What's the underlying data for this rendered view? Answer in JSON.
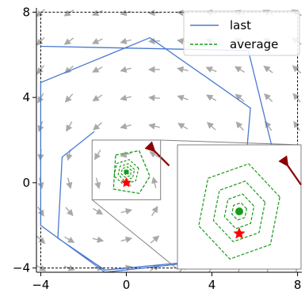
{
  "chart_data": {
    "type": "line",
    "title": "",
    "xlabel": "",
    "ylabel": "",
    "xlim": [
      -4.2,
      8.2
    ],
    "ylim": [
      -4.2,
      8.2
    ],
    "xticks": [
      -4,
      0,
      4,
      8
    ],
    "yticks": [
      -4,
      0,
      4,
      8
    ],
    "xtick_labels": [
      "−4",
      "0",
      "4",
      "8"
    ],
    "ytick_labels": [
      "−4",
      "0",
      "4",
      "8"
    ],
    "grid": false,
    "legend_position": "top-right",
    "colors": {
      "last": "#4a78d0",
      "average": "#1a9a1a",
      "arrow": "#8b0000",
      "star": "#ff0000",
      "field": "#a9a9a9",
      "inset_border": "#808080"
    },
    "series": [
      {
        "name": "last",
        "style": "solid",
        "values": [
          [
            -4.0,
            6.4
          ],
          [
            5.7,
            6.2
          ],
          [
            8.0,
            -3.2
          ],
          [
            -1.0,
            -4.2
          ],
          [
            -4.0,
            -2.0
          ],
          [
            -4.0,
            4.7
          ],
          [
            1.1,
            6.8
          ],
          [
            5.8,
            3.5
          ],
          [
            5.2,
            -3.5
          ],
          [
            -1.0,
            -4.1
          ],
          [
            -3.2,
            -2.6
          ],
          [
            -3.0,
            1.2
          ],
          [
            -1.5,
            2.4
          ]
        ]
      },
      {
        "name": "average",
        "style": "dashed",
        "values": [
          [
            -0.5,
            1.3
          ],
          [
            0.6,
            1.5
          ],
          [
            1.1,
            0.3
          ],
          [
            0.6,
            -0.5
          ],
          [
            -0.6,
            -0.3
          ],
          [
            -0.5,
            1.3
          ]
        ]
      }
    ],
    "markers": [
      {
        "name": "optimum",
        "symbol": "star",
        "x": 0.0,
        "y": 0.0
      },
      {
        "name": "start",
        "symbol": "arrow",
        "x": 1.2,
        "y": 1.6
      }
    ],
    "inset": {
      "zoom_region_x": [
        -1.6,
        1.6
      ],
      "zoom_region_y": [
        -0.8,
        2.0
      ]
    }
  }
}
